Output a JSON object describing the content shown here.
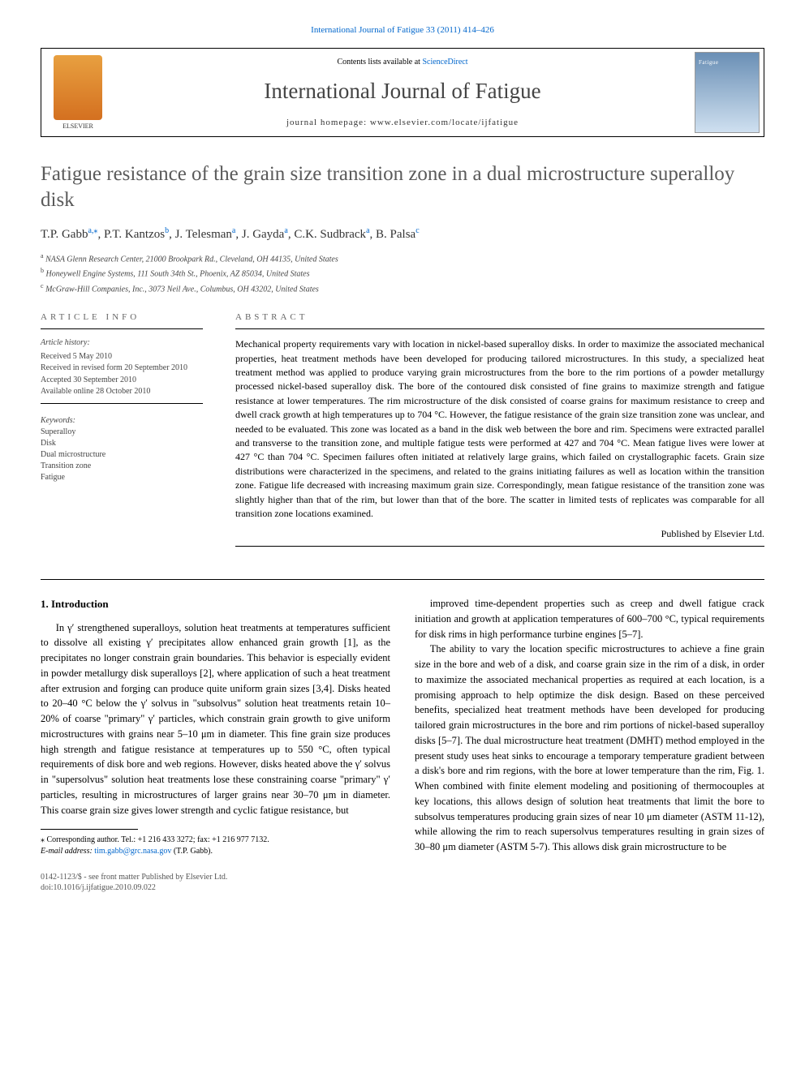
{
  "header": {
    "ref_link": "International Journal of Fatigue 33 (2011) 414–426",
    "contents_prefix": "Contents lists available at ",
    "contents_link": "ScienceDirect",
    "journal_name": "International Journal of Fatigue",
    "homepage_label": "journal homepage: www.elsevier.com/locate/ijfatigue",
    "elsevier_label": "ELSEVIER",
    "cover_label": "Fatigue"
  },
  "title": "Fatigue resistance of the grain size transition zone in a dual microstructure superalloy disk",
  "authors_html": "T.P. Gabb <sup>a,*</sup>, P.T. Kantzos <sup>b</sup>, J. Telesman <sup>a</sup>, J. Gayda <sup>a</sup>, C.K. Sudbrack <sup>a</sup>, B. Palsa <sup>c</sup>",
  "authors": [
    {
      "name": "T.P. Gabb",
      "sup": "a,⁎"
    },
    {
      "name": "P.T. Kantzos",
      "sup": "b"
    },
    {
      "name": "J. Telesman",
      "sup": "a"
    },
    {
      "name": "J. Gayda",
      "sup": "a"
    },
    {
      "name": "C.K. Sudbrack",
      "sup": "a"
    },
    {
      "name": "B. Palsa",
      "sup": "c"
    }
  ],
  "affiliations": [
    {
      "sup": "a",
      "text": "NASA Glenn Research Center, 21000 Brookpark Rd., Cleveland, OH 44135, United States"
    },
    {
      "sup": "b",
      "text": "Honeywell Engine Systems, 111 South 34th St., Phoenix, AZ 85034, United States"
    },
    {
      "sup": "c",
      "text": "McGraw-Hill Companies, Inc., 3073 Neil Ave., Columbus, OH 43202, United States"
    }
  ],
  "article_info": {
    "heading": "ARTICLE INFO",
    "history_heading": "Article history:",
    "history": [
      "Received 5 May 2010",
      "Received in revised form 20 September 2010",
      "Accepted 30 September 2010",
      "Available online 28 October 2010"
    ],
    "keywords_heading": "Keywords:",
    "keywords": [
      "Superalloy",
      "Disk",
      "Dual microstructure",
      "Transition zone",
      "Fatigue"
    ]
  },
  "abstract": {
    "heading": "ABSTRACT",
    "text": "Mechanical property requirements vary with location in nickel-based superalloy disks. In order to maximize the associated mechanical properties, heat treatment methods have been developed for producing tailored microstructures. In this study, a specialized heat treatment method was applied to produce varying grain microstructures from the bore to the rim portions of a powder metallurgy processed nickel-based superalloy disk. The bore of the contoured disk consisted of fine grains to maximize strength and fatigue resistance at lower temperatures. The rim microstructure of the disk consisted of coarse grains for maximum resistance to creep and dwell crack growth at high temperatures up to 704 °C. However, the fatigue resistance of the grain size transition zone was unclear, and needed to be evaluated. This zone was located as a band in the disk web between the bore and rim. Specimens were extracted parallel and transverse to the transition zone, and multiple fatigue tests were performed at 427 and 704 °C. Mean fatigue lives were lower at 427 °C than 704 °C. Specimen failures often initiated at relatively large grains, which failed on crystallographic facets. Grain size distributions were characterized in the specimens, and related to the grains initiating failures as well as location within the transition zone. Fatigue life decreased with increasing maximum grain size. Correspondingly, mean fatigue resistance of the transition zone was slightly higher than that of the rim, but lower than that of the bore. The scatter in limited tests of replicates was comparable for all transition zone locations examined.",
    "published": "Published by Elsevier Ltd."
  },
  "section1": {
    "heading": "1. Introduction",
    "col1_p1": "In γ′ strengthened superalloys, solution heat treatments at temperatures sufficient to dissolve all existing γ′ precipitates allow enhanced grain growth [1], as the precipitates no longer constrain grain boundaries. This behavior is especially evident in powder metallurgy disk superalloys [2], where application of such a heat treatment after extrusion and forging can produce quite uniform grain sizes [3,4]. Disks heated to 20–40 °C below the γ′ solvus in \"subsolvus\" solution heat treatments retain 10–20% of coarse \"primary\" γ′ particles, which constrain grain growth to give uniform microstructures with grains near 5–10 μm in diameter. This fine grain size produces high strength and fatigue resistance at temperatures up to 550 °C, often typical requirements of disk bore and web regions. However, disks heated above the γ′ solvus in \"supersolvus\" solution heat treatments lose these constraining coarse \"primary\" γ′ particles, resulting in microstructures of larger grains near 30–70 μm in diameter. This coarse grain size gives lower strength and cyclic fatigue resistance, but",
    "col2_p1": "improved time-dependent properties such as creep and dwell fatigue crack initiation and growth at application temperatures of 600–700 °C, typical requirements for disk rims in high performance turbine engines [5–7].",
    "col2_p2": "The ability to vary the location specific microstructures to achieve a fine grain size in the bore and web of a disk, and coarse grain size in the rim of a disk, in order to maximize the associated mechanical properties as required at each location, is a promising approach to help optimize the disk design. Based on these perceived benefits, specialized heat treatment methods have been developed for producing tailored grain microstructures in the bore and rim portions of nickel-based superalloy disks [5–7]. The dual microstructure heat treatment (DMHT) method employed in the present study uses heat sinks to encourage a temporary temperature gradient between a disk's bore and rim regions, with the bore at lower temperature than the rim, Fig. 1. When combined with finite element modeling and positioning of thermocouples at key locations, this allows design of solution heat treatments that limit the bore to subsolvus temperatures producing grain sizes of near 10 μm diameter (ASTM 11-12), while allowing the rim to reach supersolvus temperatures resulting in grain sizes of 30–80 μm diameter (ASTM 5-7). This allows disk grain microstructure to be"
  },
  "footnote": {
    "corr": "⁎ Corresponding author. Tel.: +1 216 433 3272; fax: +1 216 977 7132.",
    "email_label": "E-mail address:",
    "email": "tim.gabb@grc.nasa.gov",
    "email_suffix": "(T.P. Gabb)."
  },
  "footer": {
    "issn": "0142-1123/$ - see front matter Published by Elsevier Ltd.",
    "doi": "doi:10.1016/j.ijfatigue.2010.09.022"
  },
  "colors": {
    "link": "#0066cc",
    "text": "#000000",
    "heading_gray": "#5a5a5a",
    "elsevier_orange": "#d47020"
  }
}
